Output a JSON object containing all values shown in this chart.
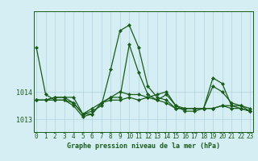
{
  "title": "Graphe pression niveau de la mer (hPa)",
  "bg_color": "#d4eef4",
  "line_color": "#1a5c1a",
  "grid_color": "#b0d4dc",
  "x_ticks": [
    0,
    1,
    2,
    3,
    4,
    5,
    6,
    7,
    8,
    9,
    10,
    11,
    12,
    13,
    14,
    15,
    16,
    17,
    18,
    19,
    20,
    21,
    22,
    23
  ],
  "y_ticks": [
    1013,
    1014
  ],
  "ylim": [
    1012.55,
    1016.9
  ],
  "xlim": [
    -0.3,
    23.3
  ],
  "series": [
    [
      1015.6,
      1013.9,
      1013.7,
      1013.7,
      1013.5,
      1013.1,
      1013.2,
      1013.6,
      1013.8,
      1013.8,
      1015.7,
      1014.7,
      1013.9,
      1013.7,
      1013.6,
      1013.4,
      1013.4,
      1013.4,
      1013.4,
      1014.2,
      1014.0,
      1013.6,
      1013.5,
      1013.4
    ],
    [
      1013.7,
      1013.7,
      1013.7,
      1013.7,
      1013.6,
      1013.2,
      1013.3,
      1013.5,
      1014.8,
      1016.2,
      1016.4,
      1015.6,
      1014.2,
      1013.8,
      1013.7,
      1013.4,
      1013.4,
      1013.4,
      1013.4,
      1013.4,
      1013.5,
      1013.5,
      1013.4,
      1013.3
    ],
    [
      1013.7,
      1013.7,
      1013.8,
      1013.8,
      1013.6,
      1013.2,
      1013.2,
      1013.6,
      1013.7,
      1013.7,
      1013.8,
      1013.7,
      1013.8,
      1013.9,
      1014.0,
      1013.5,
      1013.4,
      1013.4,
      1013.4,
      1014.5,
      1014.3,
      1013.5,
      1013.5,
      1013.3
    ],
    [
      1013.7,
      1013.7,
      1013.8,
      1013.8,
      1013.8,
      1013.2,
      1013.4,
      1013.6,
      1013.8,
      1014.0,
      1013.9,
      1013.9,
      1013.8,
      1013.7,
      1013.9,
      1013.5,
      1013.3,
      1013.3,
      1013.4,
      1013.4,
      1013.5,
      1013.4,
      1013.4,
      1013.3
    ]
  ],
  "tick_fontsize": 5.5,
  "label_fontsize": 6.0,
  "linewidth": 0.9,
  "markersize": 2.2
}
